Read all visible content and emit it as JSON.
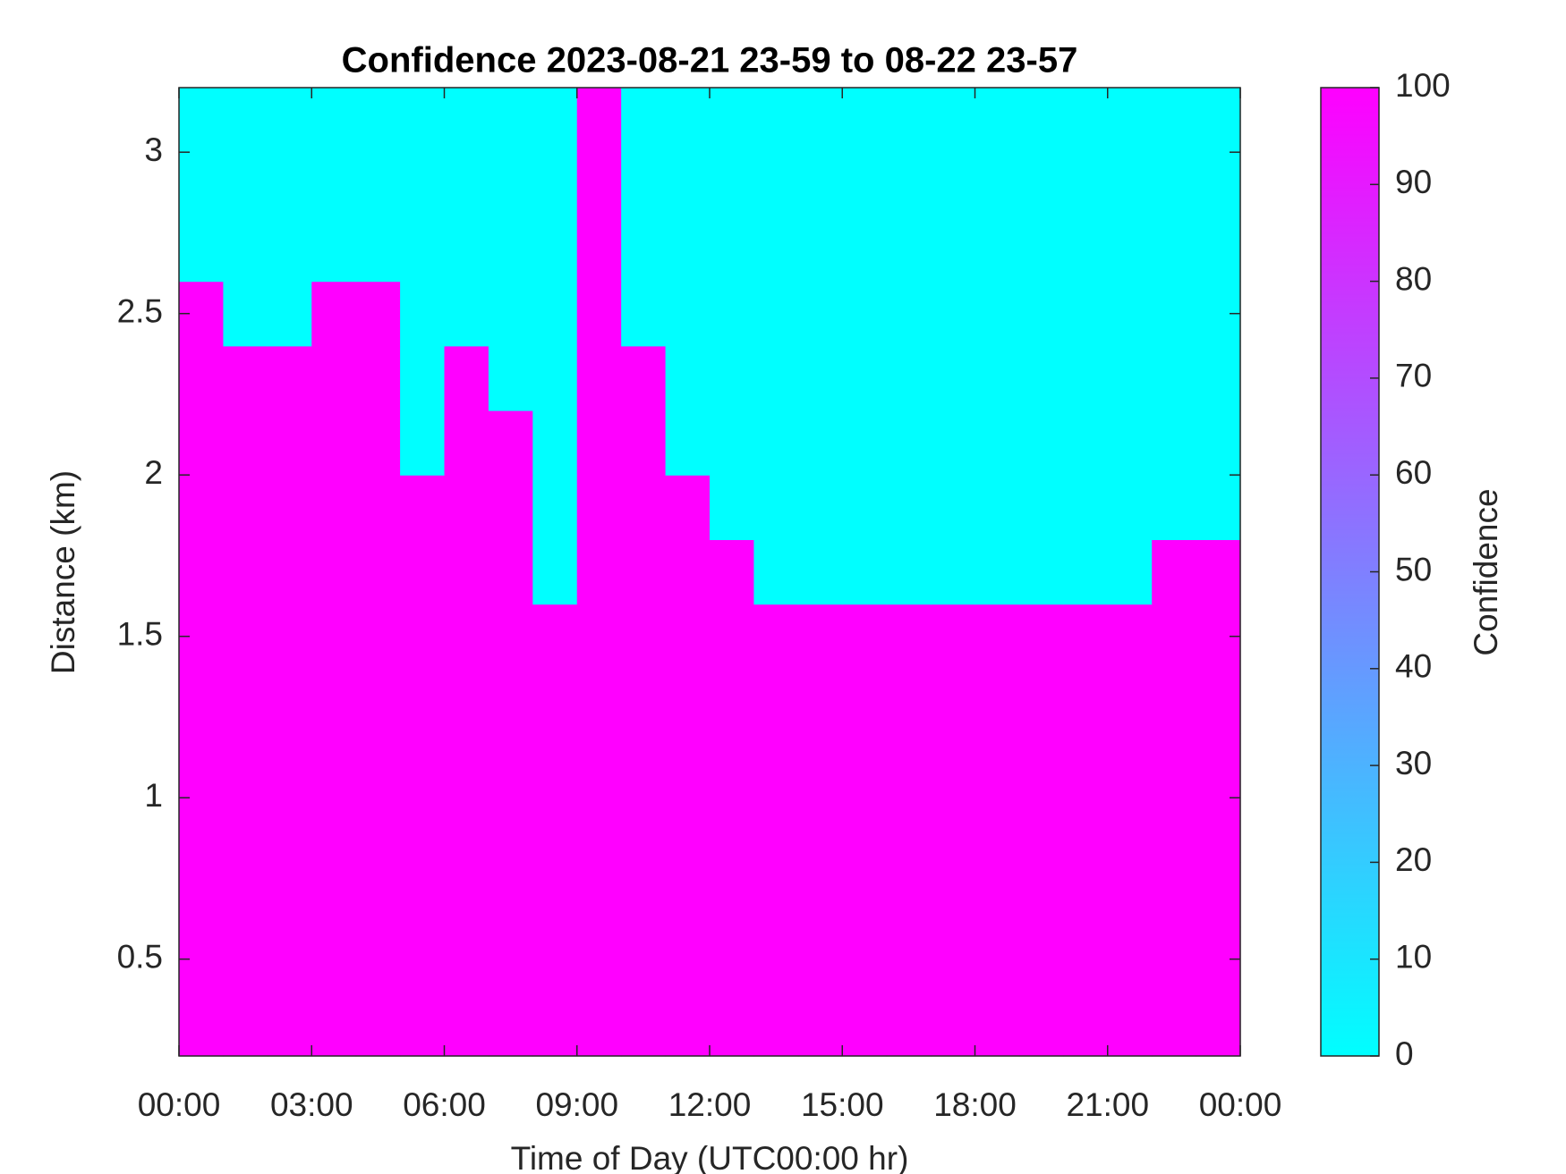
{
  "chart_data": {
    "type": "heatmap",
    "title": "Confidence 2023-08-21 23-59 to 08-22 23-57",
    "x_label": "Time of Day (UTC00:00 hr)",
    "y_label": "Distance (km)",
    "colorbar_label": "Confidence",
    "colormap": [
      "#00ffff",
      "#ff00ff"
    ],
    "x": [
      0.5,
      1.5,
      2.5,
      3.5,
      4.5,
      5.5,
      6.5,
      7.5,
      8.5,
      9.5,
      10.5,
      11.5,
      12.5,
      13.5,
      14.5,
      15.5,
      16.5,
      17.5,
      18.5,
      19.5,
      20.5,
      21.5,
      22.5,
      23.5
    ],
    "y": [
      0.3,
      0.5,
      0.7,
      0.9,
      1.1,
      1.3,
      1.5,
      1.7,
      1.9,
      2.1,
      2.3,
      2.5,
      2.7,
      2.9,
      3.1
    ],
    "z": [
      [
        100,
        100,
        100,
        100,
        100,
        100,
        100,
        100,
        100,
        100,
        100,
        100,
        100,
        100,
        100,
        100,
        100,
        100,
        100,
        100,
        100,
        100,
        100,
        100
      ],
      [
        100,
        100,
        100,
        100,
        100,
        100,
        100,
        100,
        100,
        100,
        100,
        100,
        100,
        100,
        100,
        100,
        100,
        100,
        100,
        100,
        100,
        100,
        100,
        100
      ],
      [
        100,
        100,
        100,
        100,
        100,
        100,
        100,
        100,
        100,
        100,
        100,
        100,
        100,
        100,
        100,
        100,
        100,
        100,
        100,
        100,
        100,
        100,
        100,
        100
      ],
      [
        100,
        100,
        100,
        100,
        100,
        100,
        100,
        100,
        100,
        100,
        100,
        100,
        100,
        100,
        100,
        100,
        100,
        100,
        100,
        100,
        100,
        100,
        100,
        100
      ],
      [
        100,
        100,
        100,
        100,
        100,
        100,
        100,
        100,
        100,
        100,
        100,
        100,
        100,
        100,
        100,
        100,
        100,
        100,
        100,
        100,
        100,
        100,
        100,
        100
      ],
      [
        100,
        100,
        100,
        100,
        100,
        100,
        100,
        100,
        100,
        100,
        100,
        100,
        100,
        100,
        100,
        100,
        100,
        100,
        100,
        100,
        100,
        100,
        100,
        100
      ],
      [
        100,
        100,
        100,
        100,
        100,
        100,
        100,
        100,
        100,
        100,
        100,
        100,
        100,
        100,
        100,
        100,
        100,
        100,
        100,
        100,
        100,
        100,
        100,
        100
      ],
      [
        100,
        100,
        100,
        100,
        100,
        100,
        100,
        100,
        0,
        100,
        100,
        100,
        100,
        0,
        0,
        0,
        0,
        0,
        0,
        0,
        0,
        0,
        100,
        100
      ],
      [
        100,
        100,
        100,
        100,
        100,
        100,
        100,
        100,
        0,
        100,
        100,
        100,
        0,
        0,
        0,
        0,
        0,
        0,
        0,
        0,
        0,
        0,
        0,
        0
      ],
      [
        100,
        100,
        100,
        100,
        100,
        0,
        100,
        100,
        0,
        100,
        100,
        0,
        0,
        0,
        0,
        0,
        0,
        0,
        0,
        0,
        0,
        0,
        0,
        0
      ],
      [
        100,
        100,
        100,
        100,
        100,
        0,
        100,
        0,
        0,
        100,
        100,
        0,
        0,
        0,
        0,
        0,
        0,
        0,
        0,
        0,
        0,
        0,
        0,
        0
      ],
      [
        100,
        0,
        0,
        100,
        100,
        0,
        0,
        0,
        0,
        100,
        0,
        0,
        0,
        0,
        0,
        0,
        0,
        0,
        0,
        0,
        0,
        0,
        0,
        0
      ],
      [
        0,
        0,
        0,
        0,
        0,
        0,
        0,
        0,
        0,
        100,
        0,
        0,
        0,
        0,
        0,
        0,
        0,
        0,
        0,
        0,
        0,
        0,
        0,
        0
      ],
      [
        0,
        0,
        0,
        0,
        0,
        0,
        0,
        0,
        0,
        100,
        0,
        0,
        0,
        0,
        0,
        0,
        0,
        0,
        0,
        0,
        0,
        0,
        0,
        0
      ],
      [
        0,
        0,
        0,
        0,
        0,
        0,
        0,
        0,
        0,
        100,
        0,
        0,
        0,
        0,
        0,
        0,
        0,
        0,
        0,
        0,
        0,
        0,
        0,
        0
      ]
    ],
    "xlim": [
      0,
      24
    ],
    "xticks": [
      {
        "value": 0,
        "label": "00:00"
      },
      {
        "value": 3,
        "label": "03:00"
      },
      {
        "value": 6,
        "label": "06:00"
      },
      {
        "value": 9,
        "label": "09:00"
      },
      {
        "value": 12,
        "label": "12:00"
      },
      {
        "value": 15,
        "label": "15:00"
      },
      {
        "value": 18,
        "label": "18:00"
      },
      {
        "value": 21,
        "label": "21:00"
      },
      {
        "value": 24,
        "label": "00:00"
      }
    ],
    "ylim": [
      0.2,
      3.2
    ],
    "yticks": [
      0.5,
      1,
      1.5,
      2,
      2.5,
      3
    ],
    "clim": [
      0,
      100
    ],
    "cticks": [
      0,
      10,
      20,
      30,
      40,
      50,
      60,
      70,
      80,
      90,
      100
    ]
  }
}
